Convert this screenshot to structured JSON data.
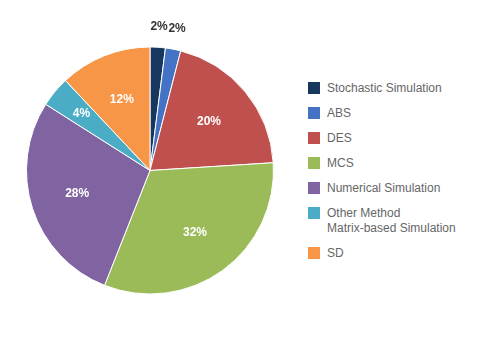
{
  "chart_data": {
    "type": "pie",
    "categories": [
      "Stochastic Simulation",
      "ABS",
      "DES",
      "MCS",
      "Numerical Simulation",
      "Other Method\nMatrix-based Simulation",
      "SD"
    ],
    "values": [
      2,
      2,
      20,
      32,
      28,
      4,
      12
    ],
    "value_labels": [
      "2%",
      "2%",
      "20%",
      "32%",
      "28%",
      "4%",
      "12%"
    ],
    "colors": [
      "#17375E",
      "#4472C4",
      "#C0504D",
      "#9BBB59",
      "#8064A2",
      "#4BACC6",
      "#F79646"
    ],
    "data_labels": true,
    "legend": "right"
  }
}
